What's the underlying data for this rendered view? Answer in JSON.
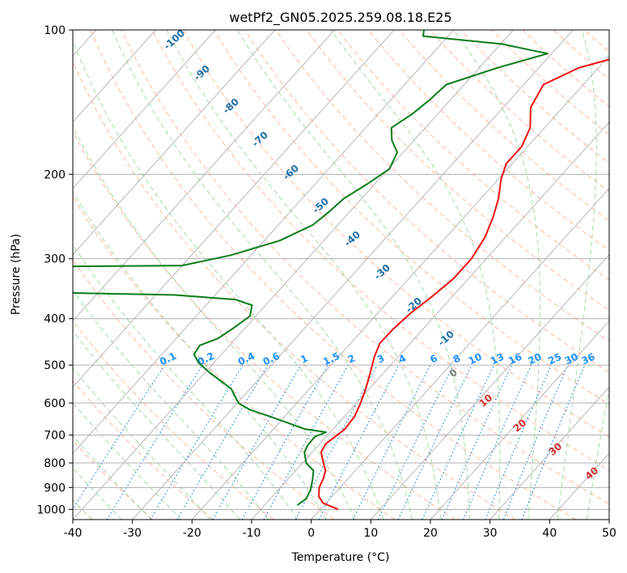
{
  "chart_data": {
    "type": "line",
    "title": "wetPf2_GN05.2025.259.08.18.E25",
    "xlabel": "Temperature (°C)",
    "ylabel": "Pressure (hPa)",
    "xlim": [
      -40,
      50
    ],
    "ylim": [
      1050,
      100
    ],
    "y_scale": "log",
    "grid": true,
    "x_ticks": [
      -40,
      -30,
      -20,
      -10,
      0,
      10,
      20,
      30,
      40,
      50
    ],
    "y_ticks": [
      100,
      200,
      300,
      400,
      500,
      600,
      700,
      800,
      900,
      1000
    ],
    "series": [
      {
        "role": "temperature",
        "color": "#ee1111",
        "points": [
          {
            "p": 1000,
            "t": 3.0
          },
          {
            "p": 970,
            "t": -0.5
          },
          {
            "p": 940,
            "t": -2.2
          },
          {
            "p": 900,
            "t": -3.5
          },
          {
            "p": 860,
            "t": -4.2
          },
          {
            "p": 830,
            "t": -5.0
          },
          {
            "p": 800,
            "t": -6.5
          },
          {
            "p": 760,
            "t": -8.5
          },
          {
            "p": 730,
            "t": -9.0
          },
          {
            "p": 700,
            "t": -8.4
          },
          {
            "p": 680,
            "t": -8.0
          },
          {
            "p": 640,
            "t": -8.3
          },
          {
            "p": 600,
            "t": -9.3
          },
          {
            "p": 560,
            "t": -10.6
          },
          {
            "p": 520,
            "t": -12.2
          },
          {
            "p": 480,
            "t": -14.0
          },
          {
            "p": 450,
            "t": -15.1
          },
          {
            "p": 420,
            "t": -15.0
          },
          {
            "p": 390,
            "t": -14.5
          },
          {
            "p": 360,
            "t": -13.4
          },
          {
            "p": 330,
            "t": -12.5
          },
          {
            "p": 300,
            "t": -12.5
          },
          {
            "p": 270,
            "t": -13.5
          },
          {
            "p": 245,
            "t": -15.2
          },
          {
            "p": 225,
            "t": -17.0
          },
          {
            "p": 205,
            "t": -19.5
          },
          {
            "p": 190,
            "t": -21.0
          },
          {
            "p": 175,
            "t": -21.0
          },
          {
            "p": 160,
            "t": -22.4
          },
          {
            "p": 145,
            "t": -25.4
          },
          {
            "p": 130,
            "t": -26.7
          },
          {
            "p": 120,
            "t": -23.3
          },
          {
            "p": 113,
            "t": -17.6
          },
          {
            "p": 107,
            "t": -10.7
          },
          {
            "p": 102,
            "t": -3.7
          },
          {
            "p": 100,
            "t": 0.8
          }
        ]
      },
      {
        "role": "dewpoint",
        "color": "#0a7d1a",
        "points": [
          {
            "p": 980,
            "t": -4.5
          },
          {
            "p": 950,
            "t": -4.0
          },
          {
            "p": 910,
            "t": -4.6
          },
          {
            "p": 870,
            "t": -5.7
          },
          {
            "p": 830,
            "t": -7.0
          },
          {
            "p": 800,
            "t": -9.4
          },
          {
            "p": 760,
            "t": -11.3
          },
          {
            "p": 735,
            "t": -11.8
          },
          {
            "p": 705,
            "t": -11.9
          },
          {
            "p": 690,
            "t": -10.7
          },
          {
            "p": 680,
            "t": -14.7
          },
          {
            "p": 640,
            "t": -22.5
          },
          {
            "p": 620,
            "t": -26.8
          },
          {
            "p": 600,
            "t": -29.8
          },
          {
            "p": 560,
            "t": -33.2
          },
          {
            "p": 520,
            "t": -39.0
          },
          {
            "p": 495,
            "t": -42.5
          },
          {
            "p": 475,
            "t": -44.6
          },
          {
            "p": 455,
            "t": -45.0
          },
          {
            "p": 440,
            "t": -43.0
          },
          {
            "p": 420,
            "t": -42.0
          },
          {
            "p": 395,
            "t": -41.0
          },
          {
            "p": 375,
            "t": -42.3
          },
          {
            "p": 365,
            "t": -46.0
          },
          {
            "p": 357,
            "t": -57.0
          },
          {
            "p": 330,
            "t": -200.0
          }
        ]
      },
      {
        "role": "dewpoint",
        "color": "#0a7d1a",
        "points": [
          {
            "p": 320,
            "t": -200.0
          },
          {
            "p": 310,
            "t": -60.0
          },
          {
            "p": 295,
            "t": -53.4
          },
          {
            "p": 275,
            "t": -47.4
          },
          {
            "p": 255,
            "t": -44.2
          },
          {
            "p": 240,
            "t": -43.5
          },
          {
            "p": 225,
            "t": -43.0
          },
          {
            "p": 210,
            "t": -41.3
          },
          {
            "p": 195,
            "t": -39.8
          },
          {
            "p": 180,
            "t": -41.0
          },
          {
            "p": 170,
            "t": -43.7
          },
          {
            "p": 160,
            "t": -45.7
          },
          {
            "p": 150,
            "t": -44.3
          },
          {
            "p": 140,
            "t": -43.5
          },
          {
            "p": 130,
            "t": -43.0
          },
          {
            "p": 120,
            "t": -37.0
          },
          {
            "p": 112,
            "t": -30.7
          },
          {
            "p": 107,
            "t": -39.8
          },
          {
            "p": 103,
            "t": -54.2
          },
          {
            "p": 100,
            "t": -55.0
          }
        ]
      }
    ],
    "dry_adiabat_labels": [
      "-100",
      "-90",
      "-80",
      "-70",
      "-60",
      "-50",
      "-40",
      "-30",
      "-20",
      "-10"
    ],
    "moist_adiabat_labels": [
      "0",
      "10",
      "20",
      "30",
      "40"
    ],
    "mixing_ratio_labels": [
      "0.1",
      "0.2",
      "0.4",
      "0.6",
      "1",
      "1.5",
      "2",
      "3",
      "4",
      "6",
      "8",
      "10",
      "13",
      "16",
      "20",
      "25",
      "30",
      "36"
    ],
    "colors": {
      "isotherm": "#b8b8b8",
      "isobar": "#b0b0b0",
      "dry_adiabat": "#ffb8a0",
      "moist_adiabat": "#a8d8a8",
      "mixing_ratio": "#1e88e5",
      "dry_label": "#1f6fa8",
      "moist_label": "#d32f2f"
    }
  }
}
